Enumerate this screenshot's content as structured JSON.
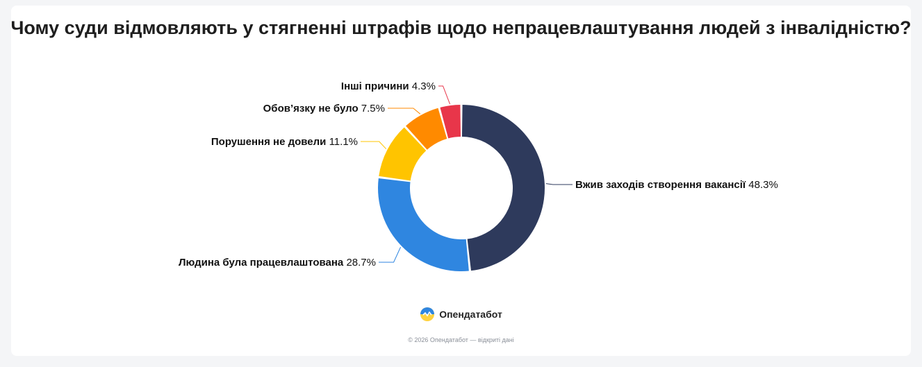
{
  "title": "Чому суди відмовляють у стягненні штрафів щодо непрацевлаштування людей з інвалідністю?",
  "brand": {
    "name": "Опендатабот",
    "logo_icon": "opendatabot-logo-icon"
  },
  "footer": "© 2026 Опендатабот — відкриті дані",
  "chart_data": {
    "type": "pie",
    "donut": true,
    "title": "Чому суди відмовляють у стягненні штрафів щодо непрацевлаштування людей з інвалідністю?",
    "categories": [
      "Вжив заходів створення вакансії",
      "Людина була працевлаштована",
      "Порушення не довели",
      "Обов’язку не було",
      "Інші причини"
    ],
    "values": [
      48.3,
      28.7,
      11.1,
      7.5,
      4.3
    ],
    "value_labels": [
      "48.3%",
      "28.7%",
      "11.1%",
      "7.5%",
      "4.3%"
    ],
    "colors": [
      "#2e3a5c",
      "#2f86e0",
      "#ffc400",
      "#ff8a00",
      "#e8364a"
    ]
  }
}
